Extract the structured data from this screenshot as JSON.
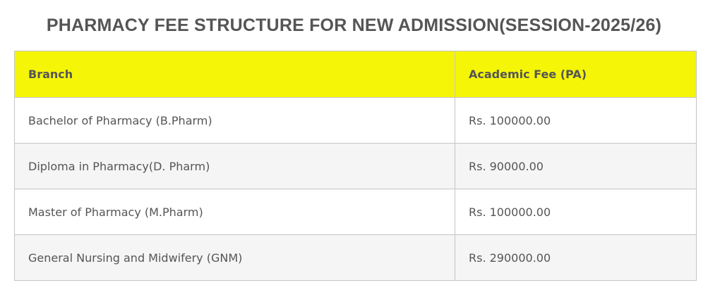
{
  "title": "PHARMACY FEE STRUCTURE FOR NEW ADMISSION(SESSION-2025/26)",
  "colors": {
    "header_bg": "#f5f507",
    "text": "#555555",
    "alt_row": "#f5f5f5"
  },
  "table": {
    "headers": [
      "Branch",
      "Academic Fee (PA)"
    ],
    "rows": [
      [
        "Bachelor of Pharmacy (B.Pharm)",
        "Rs. 100000.00"
      ],
      [
        "Diploma in Pharmacy(D. Pharm)",
        "Rs. 90000.00"
      ],
      [
        "Master of Pharmacy (M.Pharm)",
        "Rs. 100000.00"
      ],
      [
        "General Nursing and Midwifery (GNM)",
        "Rs. 290000.00"
      ]
    ]
  }
}
